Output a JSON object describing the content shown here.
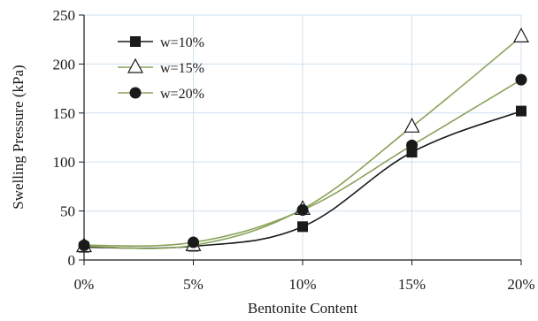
{
  "chart_data": {
    "type": "line",
    "title": "",
    "xlabel": "Bentonite Content",
    "ylabel": "Swelling Pressure (kPa)",
    "categories": [
      "0%",
      "5%",
      "10%",
      "15%",
      "20%"
    ],
    "x": [
      0,
      5,
      10,
      15,
      20
    ],
    "ylim": [
      0,
      250
    ],
    "yticks": [
      0,
      50,
      100,
      150,
      200,
      250
    ],
    "grid": true,
    "legend_position": "top-left",
    "series": [
      {
        "name": "w=10%",
        "values": [
          13,
          14,
          34,
          110,
          152
        ],
        "marker": "square",
        "color": "#1a1a1a",
        "line_color": "#1a1a1a"
      },
      {
        "name": "w=15%",
        "values": [
          14,
          15,
          52,
          136,
          228
        ],
        "marker": "triangle-open",
        "color": "#1a1a1a",
        "line_color": "#8aa35a"
      },
      {
        "name": "w=20%",
        "values": [
          15,
          18,
          51,
          117,
          184
        ],
        "marker": "circle",
        "color": "#1a1a1a",
        "line_color": "#8aa35a"
      }
    ],
    "colors": {
      "grid": "#cfe0ef",
      "axis": "#1a1a1a"
    }
  }
}
